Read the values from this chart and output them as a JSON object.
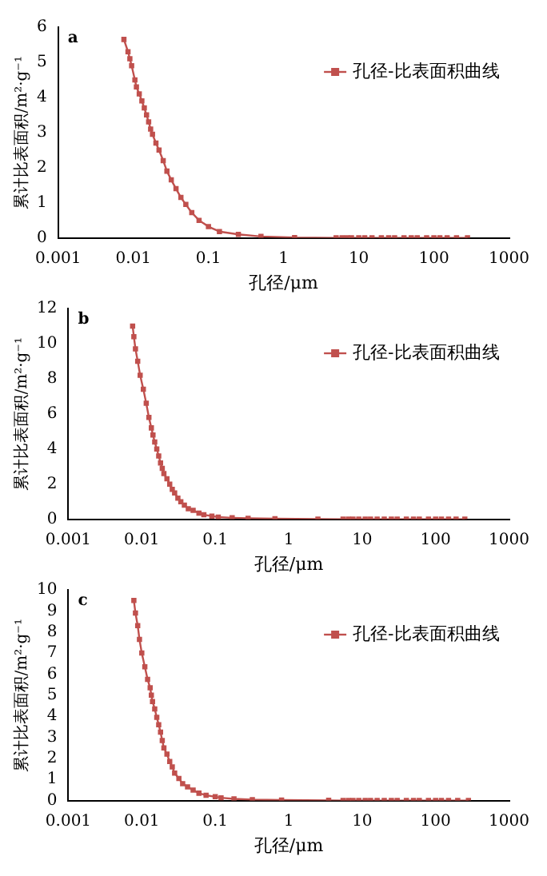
{
  "chart_data": [
    {
      "type": "line",
      "annotations": [
        "a"
      ],
      "xlabel": "孔径/μm",
      "ylabel": "累计比表面积/m²·g⁻¹",
      "log": "x",
      "xlim": [
        0.001,
        1000
      ],
      "xticks": [
        0.001,
        0.01,
        0.1,
        1,
        10,
        100,
        1000
      ],
      "ylim": [
        0,
        6
      ],
      "yticks": [
        0,
        1,
        2,
        3,
        4,
        5,
        6
      ],
      "grid": false,
      "legend": "top right",
      "marker": "square",
      "line_style": "solid",
      "x": [
        0.0075,
        0.0085,
        0.009,
        0.0095,
        0.0105,
        0.011,
        0.012,
        0.013,
        0.014,
        0.015,
        0.016,
        0.017,
        0.018,
        0.02,
        0.022,
        0.025,
        0.028,
        0.032,
        0.037,
        0.043,
        0.05,
        0.06,
        0.075,
        0.1,
        0.14,
        0.25,
        0.5,
        1.4,
        5,
        6,
        7,
        8,
        10,
        12,
        15,
        20,
        25,
        30,
        40,
        50,
        60,
        80,
        100,
        120,
        150,
        200,
        280
      ],
      "series": [
        {
          "name": "孔径-比表面积曲线",
          "color": "#c0504d",
          "values": [
            5.65,
            5.3,
            5.1,
            4.9,
            4.5,
            4.3,
            4.1,
            3.9,
            3.7,
            3.5,
            3.3,
            3.1,
            2.95,
            2.7,
            2.5,
            2.2,
            1.9,
            1.65,
            1.4,
            1.15,
            0.95,
            0.72,
            0.5,
            0.32,
            0.18,
            0.1,
            0.04,
            0.01,
            0,
            0,
            0,
            0,
            0,
            0,
            0,
            0,
            0,
            0,
            0,
            0,
            0,
            0,
            0,
            0,
            0,
            0,
            0
          ]
        }
      ]
    },
    {
      "type": "line",
      "annotations": [
        "b"
      ],
      "xlabel": "孔径/μm",
      "ylabel": "累计比表面积/m²·g⁻¹",
      "log": "x",
      "xlim": [
        0.001,
        1000
      ],
      "xticks": [
        0.001,
        0.01,
        0.1,
        1,
        10,
        100,
        1000
      ],
      "ylim": [
        0,
        12
      ],
      "yticks": [
        0,
        2,
        4,
        6,
        8,
        10,
        12
      ],
      "grid": false,
      "legend": "top right",
      "marker": "square",
      "line_style": "solid",
      "x": [
        0.0075,
        0.0078,
        0.0082,
        0.0088,
        0.0095,
        0.0105,
        0.0115,
        0.0125,
        0.0135,
        0.0142,
        0.015,
        0.016,
        0.017,
        0.018,
        0.019,
        0.02,
        0.022,
        0.024,
        0.026,
        0.028,
        0.031,
        0.034,
        0.038,
        0.043,
        0.05,
        0.06,
        0.07,
        0.09,
        0.11,
        0.17,
        0.28,
        0.65,
        2.5,
        5.5,
        6.5,
        7.5,
        9,
        11,
        13,
        16,
        20,
        25,
        30,
        40,
        50,
        60,
        80,
        100,
        120,
        150,
        190,
        250
      ],
      "series": [
        {
          "name": "孔径-比表面积曲线",
          "color": "#c0504d",
          "values": [
            11,
            10.4,
            9.7,
            9,
            8.2,
            7.4,
            6.6,
            5.8,
            5.2,
            4.8,
            4.4,
            4,
            3.6,
            3.2,
            2.9,
            2.6,
            2.3,
            2,
            1.7,
            1.5,
            1.2,
            1,
            0.8,
            0.6,
            0.5,
            0.35,
            0.25,
            0.18,
            0.12,
            0.08,
            0.05,
            0.03,
            0.01,
            0,
            0,
            0,
            0,
            0,
            0,
            0,
            0,
            0,
            0,
            0,
            0,
            0,
            0,
            0,
            0,
            0,
            0,
            0
          ]
        }
      ]
    },
    {
      "type": "line",
      "annotations": [
        "c"
      ],
      "xlabel": "孔径/μm",
      "ylabel": "累计比表面积/m²·g⁻¹",
      "log": "x",
      "xlim": [
        0.001,
        1000
      ],
      "xticks": [
        0.001,
        0.01,
        0.1,
        1,
        10,
        100,
        1000
      ],
      "ylim": [
        0,
        10
      ],
      "yticks": [
        0,
        1,
        2,
        3,
        4,
        5,
        6,
        7,
        8,
        9,
        10
      ],
      "grid": false,
      "legend": "top right",
      "marker": "square",
      "line_style": "solid",
      "x": [
        0.0078,
        0.0082,
        0.0088,
        0.0093,
        0.01,
        0.011,
        0.012,
        0.013,
        0.0135,
        0.014,
        0.015,
        0.016,
        0.017,
        0.018,
        0.019,
        0.02,
        0.022,
        0.024,
        0.026,
        0.028,
        0.032,
        0.036,
        0.042,
        0.05,
        0.06,
        0.075,
        0.1,
        0.12,
        0.18,
        0.32,
        0.8,
        3.5,
        5.5,
        6.5,
        7.5,
        9,
        11,
        13,
        16,
        20,
        25,
        30,
        40,
        50,
        60,
        80,
        100,
        120,
        150,
        200,
        280
      ],
      "series": [
        {
          "name": "孔径-比表面积曲线",
          "color": "#c0504d",
          "values": [
            9.5,
            8.9,
            8.3,
            7.65,
            7,
            6.35,
            5.75,
            5.35,
            5,
            4.7,
            4.35,
            3.95,
            3.6,
            3.25,
            2.85,
            2.5,
            2.2,
            1.85,
            1.6,
            1.3,
            1.05,
            0.8,
            0.65,
            0.5,
            0.35,
            0.25,
            0.18,
            0.13,
            0.08,
            0.04,
            0.02,
            0.01,
            0,
            0,
            0,
            0,
            0,
            0,
            0,
            0,
            0,
            0,
            0,
            0,
            0,
            0,
            0,
            0,
            0,
            0,
            0
          ]
        }
      ]
    }
  ]
}
